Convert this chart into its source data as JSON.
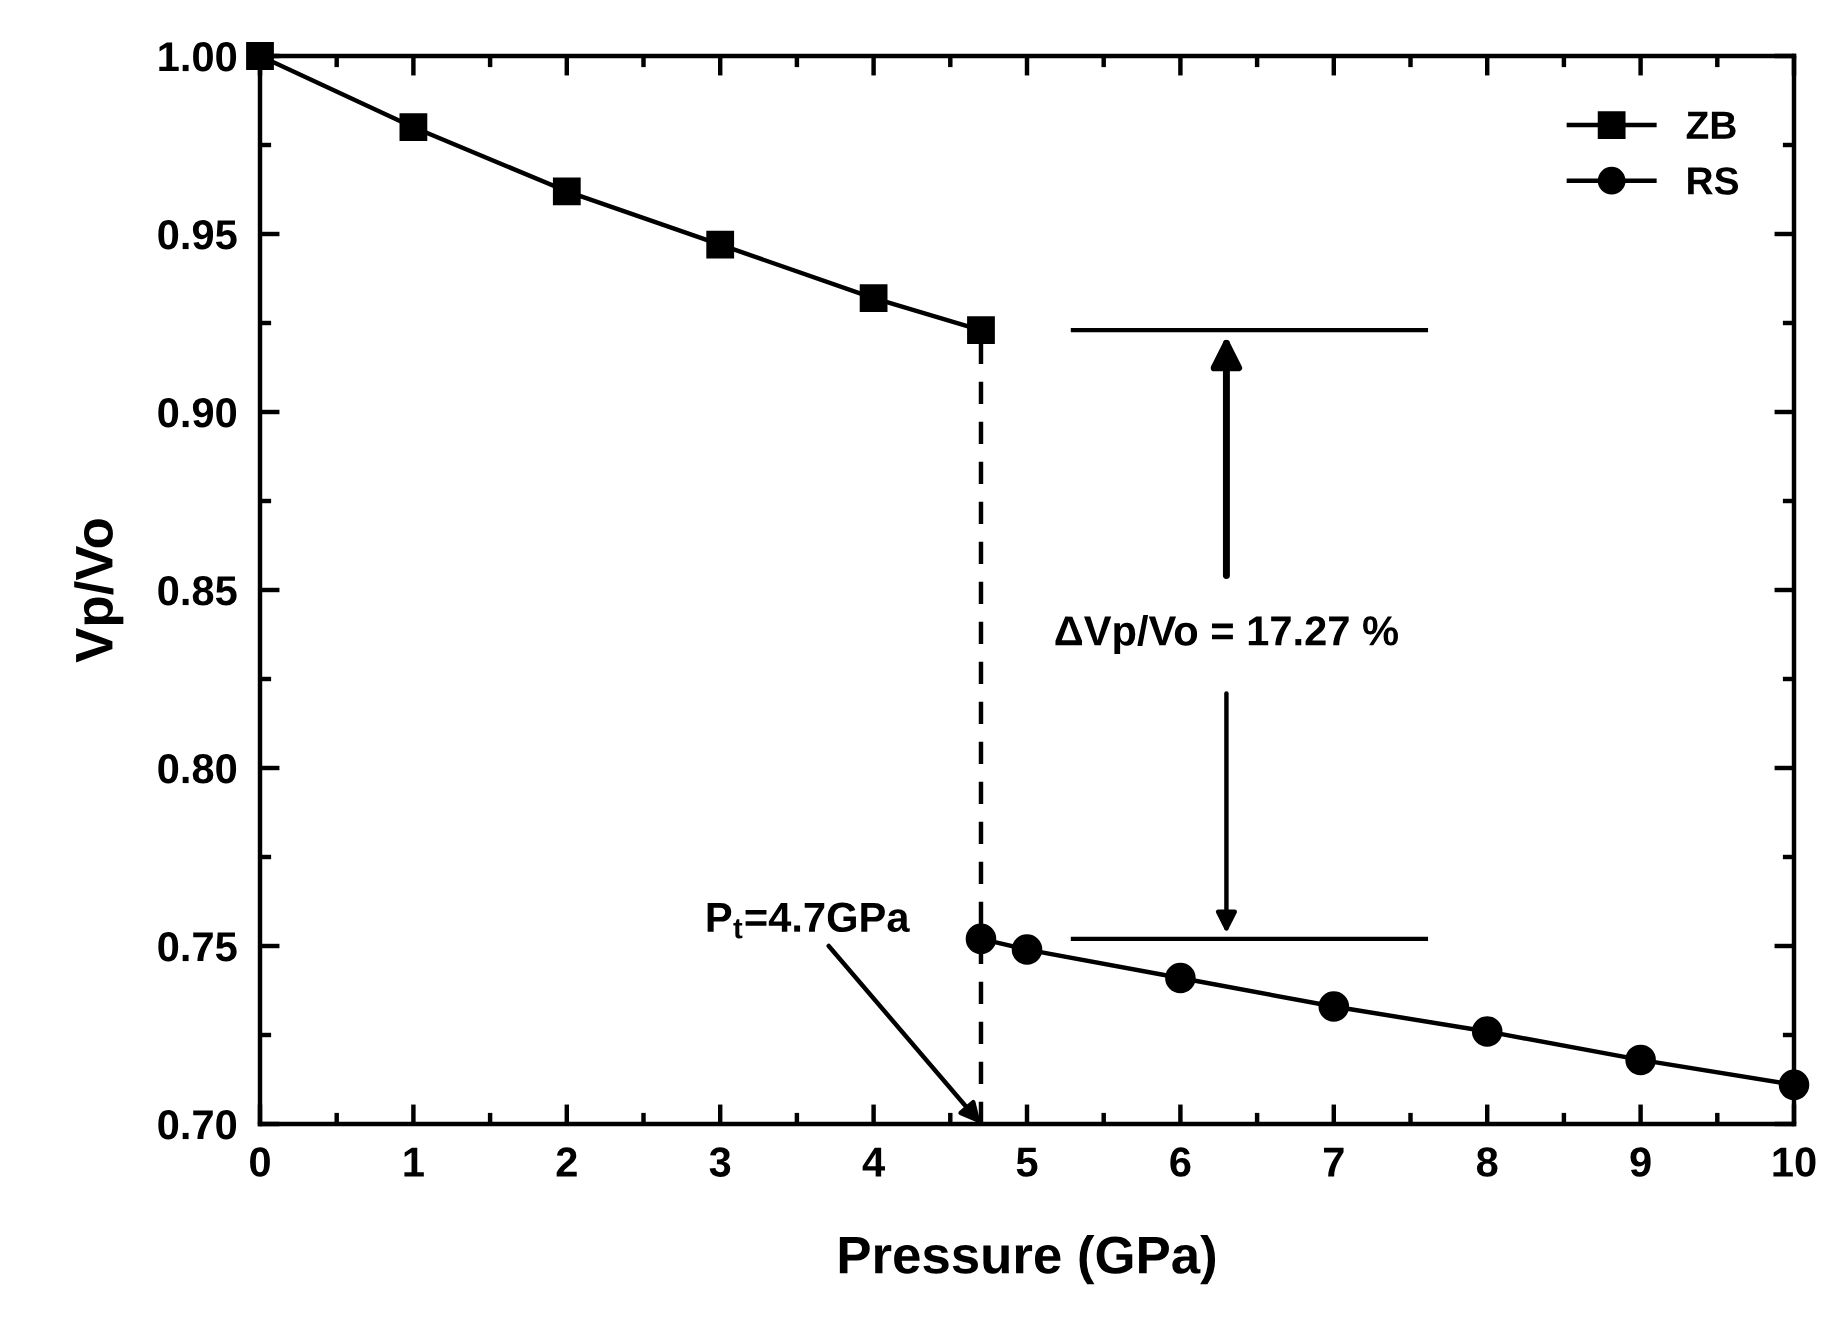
{
  "chart_data": {
    "type": "line",
    "xlabel": "Pressure (GPa)",
    "ylabel": "Vp/Vo",
    "series": [
      {
        "name": "ZB",
        "color": "#000000",
        "marker": "square",
        "x": [
          0,
          1,
          2,
          3,
          4,
          4.7
        ],
        "values": [
          1.0,
          0.98,
          0.962,
          0.947,
          0.932,
          0.923
        ]
      },
      {
        "name": "RS",
        "color": "#000000",
        "marker": "circle",
        "x": [
          4.7,
          5,
          6,
          7,
          8,
          9,
          10
        ],
        "values": [
          0.752,
          0.749,
          0.741,
          0.733,
          0.726,
          0.718,
          0.711
        ]
      }
    ],
    "xlim": [
      0,
      10
    ],
    "xticks": [
      0,
      1,
      2,
      3,
      4,
      5,
      6,
      7,
      8,
      9,
      10
    ],
    "ylim": [
      0.7,
      1.0
    ],
    "yticks": [
      {
        "value": 0.7,
        "label": "0.70"
      },
      {
        "value": 0.75,
        "label": "0.75"
      },
      {
        "value": 0.8,
        "label": "0.80"
      },
      {
        "value": 0.85,
        "label": "0.85"
      },
      {
        "value": 0.9,
        "label": "0.90"
      },
      {
        "value": 0.95,
        "label": "0.95"
      },
      {
        "value": 1.0,
        "label": "1.00"
      }
    ],
    "ref_lines": [
      {
        "axis": "x",
        "value": 4.7,
        "line_style": "dashed",
        "color": "#000000"
      }
    ],
    "annotations": [
      {
        "text": "P$_{t}$=4.7GPa",
        "x": 4.7,
        "y": 0.7
      },
      "ΔVp/Vo = 17.27 %"
    ],
    "grid": false,
    "legend": "top right",
    "line_style": "solid"
  }
}
